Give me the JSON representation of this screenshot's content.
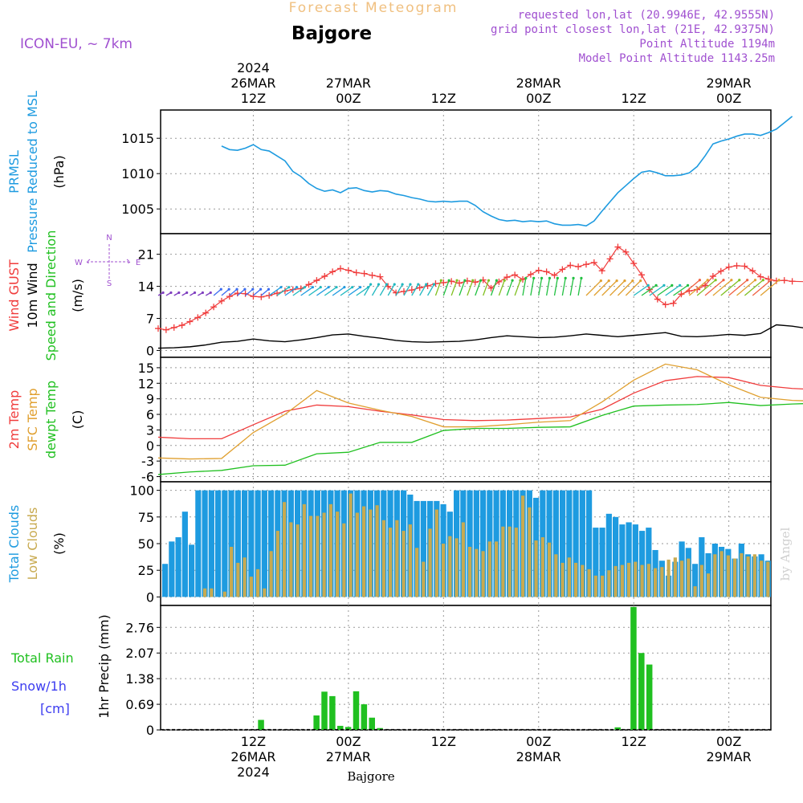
{
  "header": {
    "product": "Forecast Meteogram",
    "location": "Bajgore",
    "model": "ICON-EU, ~ 7km",
    "requested": "requested lon,lat (20.9946E, 42.9555N)",
    "grid_point": "grid point closest lon,lat (21E, 42.9375N)",
    "point_altitude": "Point Altitude 1194m",
    "model_altitude": "Model Point Altitude 1143.25m"
  },
  "footer": {
    "location": "Bajgore",
    "credit": "by Angel"
  },
  "colors": {
    "pressure": "#1e9be0",
    "gust": "#f03c3c",
    "wind": "#000000",
    "temp2m": "#f03c3c",
    "sfc": "#e0a030",
    "dewpt": "#20c020",
    "total_clouds": "#1e9be0",
    "low_clouds": "#c8aa50",
    "rain": "#20c020",
    "snow": "#3c3cf0",
    "cm_label": "#3c3cf0",
    "header_purple": "#a050d0",
    "header_title": "#f0c080"
  },
  "time_axis": {
    "hours_total": 64,
    "top_ticks": [
      {
        "hour": 12,
        "lines": [
          "2024",
          "26MAR",
          "12Z"
        ]
      },
      {
        "hour": 24,
        "lines": [
          "27MAR",
          "00Z"
        ]
      },
      {
        "hour": 36,
        "lines": [
          "12Z"
        ]
      },
      {
        "hour": 48,
        "lines": [
          "28MAR",
          "00Z"
        ]
      },
      {
        "hour": 60,
        "lines": [
          "12Z"
        ]
      },
      {
        "hour": 72,
        "lines": [
          "29MAR",
          "00Z"
        ]
      }
    ],
    "bottom_ticks": [
      {
        "hour": 12,
        "lines": [
          "12Z",
          "26MAR",
          "2024"
        ]
      },
      {
        "hour": 24,
        "lines": [
          "00Z",
          "27MAR"
        ]
      },
      {
        "hour": 36,
        "lines": [
          "12Z"
        ]
      },
      {
        "hour": 48,
        "lines": [
          "00Z",
          "28MAR"
        ]
      },
      {
        "hour": 60,
        "lines": [
          "12Z"
        ]
      },
      {
        "hour": 72,
        "lines": [
          "00Z",
          "29MAR"
        ]
      }
    ]
  },
  "panels": {
    "pressure": {
      "labels": [
        {
          "text": "PRMSL",
          "color": "#1e9be0"
        },
        {
          "text": "Pressure Reduced to MSL",
          "color": "#1e9be0"
        }
      ],
      "unit": "(hPa)",
      "ticks": [
        1005,
        1010,
        1015
      ]
    },
    "wind": {
      "labels": [
        {
          "text": "Wind GUST",
          "color": "#f03c3c"
        },
        {
          "text": "10m Wind",
          "color": "#000000"
        },
        {
          "text": "Speed and Direction",
          "color": "#20c020"
        }
      ],
      "unit": "(m/s)",
      "ticks": [
        0,
        7,
        14,
        21
      ],
      "compass": {
        "n": "N",
        "s": "S",
        "w": "W",
        "e": "E"
      }
    },
    "temp": {
      "labels": [
        {
          "text": "2m Temp",
          "color": "#f03c3c"
        },
        {
          "text": "SFC Temp",
          "color": "#e0a030"
        },
        {
          "text": "dewpt Temp",
          "color": "#20c020"
        }
      ],
      "unit": "(C)",
      "ticks": [
        -6,
        -3,
        0,
        3,
        6,
        9,
        12,
        15
      ]
    },
    "clouds": {
      "labels": [
        {
          "text": "Total Clouds",
          "color": "#1e9be0"
        },
        {
          "text": "Low Clouds",
          "color": "#c8aa50"
        }
      ],
      "unit": "(%)",
      "ticks": [
        0,
        25,
        50,
        75,
        100
      ]
    },
    "precip": {
      "labels": [
        {
          "text": "Total  Rain",
          "color": "#20c020"
        },
        {
          "text": "Snow/1h",
          "color": "#3c3cf0"
        },
        {
          "text": "[cm]",
          "color": "#3c3cf0"
        }
      ],
      "unit": "1hr Precip (mm)",
      "ticks": [
        0,
        0.69,
        1.38,
        2.07,
        2.76
      ]
    }
  },
  "chart_data": [
    {
      "type": "line",
      "title": "PRMSL Pressure Reduced to MSL",
      "ylabel": "(hPa)",
      "x_unit": "forecast hour (0 = 26MAR 00Z)",
      "ylim": [
        1001.5,
        1019
      ],
      "series": [
        {
          "name": "PRMSL",
          "x": [
            8,
            9,
            10,
            11,
            12,
            13,
            14,
            15,
            16,
            17,
            18,
            19,
            20,
            21,
            22,
            23,
            24,
            25,
            26,
            27,
            28,
            29,
            30,
            31,
            32,
            33,
            34,
            35,
            36,
            37,
            38,
            39,
            40,
            41,
            42,
            43,
            44,
            45,
            46,
            47,
            48,
            49,
            50,
            51,
            52,
            53,
            54,
            55,
            56,
            57,
            58,
            59,
            60,
            61,
            62,
            63,
            64,
            65,
            66,
            67,
            68,
            69,
            70,
            71,
            72,
            73,
            74,
            75,
            76
          ],
          "values": [
            1013.9,
            1013.4,
            1013.3,
            1013.6,
            1014.1,
            1013.4,
            1013.2,
            1012.5,
            1011.8,
            1010.3,
            1009.6,
            1008.6,
            1007.9,
            1007.5,
            1007.7,
            1007.3,
            1007.9,
            1008.0,
            1007.6,
            1007.4,
            1007.6,
            1007.5,
            1007.1,
            1006.9,
            1006.6,
            1006.4,
            1006.1,
            1006.0,
            1006.1,
            1006.0,
            1006.1,
            1006.1,
            1005.5,
            1004.6,
            1004.0,
            1003.5,
            1003.3,
            1003.4,
            1003.2,
            1003.3,
            1003.2,
            1003.3,
            1002.9,
            1002.7,
            1002.7,
            1002.8,
            1002.6,
            1003.3,
            1004.7,
            1006.0,
            1007.3,
            1008.3,
            1009.3,
            1010.2,
            1010.4,
            1010.1,
            1009.7,
            1009.7,
            1009.8,
            1010.1,
            1011.0,
            1012.5,
            1014.2,
            1014.6,
            1014.9,
            1015.3,
            1015.6,
            1015.6,
            1015.4
          ],
          "x_tail": [
            77,
            78,
            79,
            80
          ],
          "values_tail": [
            1015.8,
            1016.3,
            1017.2,
            1018.1
          ]
        }
      ]
    },
    {
      "type": "line",
      "title": "Wind GUST / 10m Wind Speed and Direction",
      "ylabel": "(m/s)",
      "ylim": [
        -1.5,
        25.5
      ],
      "series": [
        {
          "name": "Wind GUST",
          "x": [
            0,
            1,
            2,
            3,
            4,
            5,
            6,
            7,
            8,
            9,
            10,
            11,
            12,
            13,
            14,
            15,
            16,
            17,
            18,
            19,
            20,
            21,
            22,
            23,
            24,
            25,
            26,
            27,
            28,
            29,
            30,
            31,
            32,
            33,
            34,
            35,
            36,
            37,
            38,
            39,
            40,
            41,
            42,
            43,
            44,
            45,
            46,
            47,
            48,
            49,
            50,
            51,
            52,
            53,
            54,
            55,
            56,
            57,
            58,
            59,
            60,
            61,
            62,
            63,
            64,
            65,
            66,
            67,
            68,
            69,
            70,
            71,
            72,
            73,
            74,
            75,
            76,
            77,
            78,
            79,
            80
          ],
          "values": [
            4.8,
            4.5,
            5.0,
            5.5,
            6.3,
            7.2,
            8.2,
            9.5,
            10.8,
            11.8,
            12.5,
            12.4,
            11.8,
            11.7,
            12.0,
            12.5,
            13.0,
            13.3,
            13.5,
            14.4,
            15.3,
            16.2,
            17.2,
            17.9,
            17.5,
            17.0,
            16.8,
            16.4,
            16.1,
            14.0,
            12.6,
            12.9,
            13.2,
            13.7,
            14.1,
            14.6,
            14.8,
            15.1,
            14.7,
            15.2,
            14.9,
            15.4,
            13.6,
            15.0,
            16.0,
            16.5,
            15.5,
            16.6,
            17.5,
            17.2,
            16.4,
            17.7,
            18.6,
            18.3,
            18.8,
            19.2,
            17.4,
            20.0,
            22.6,
            21.5,
            19.0,
            16.5,
            13.3,
            11.2,
            10.0,
            10.3,
            12.3,
            13.0,
            13.3,
            14.2,
            16.2,
            17.3,
            18.2,
            18.5,
            18.4,
            17.4,
            16.1,
            15.6,
            15.2,
            15.3,
            15.1
          ],
          "x_tail": [
            82,
            84,
            86,
            88,
            90
          ],
          "values_tail": [
            15.0,
            14.6,
            16.1,
            14.4,
            13.2
          ]
        },
        {
          "name": "10m Wind",
          "x": [
            0,
            2,
            4,
            6,
            8,
            10,
            12,
            14,
            16,
            18,
            20,
            22,
            24,
            26,
            28,
            30,
            32,
            34,
            36,
            38,
            40,
            42,
            44,
            46,
            48,
            50,
            52,
            54,
            56,
            58,
            60,
            62,
            64,
            66,
            68,
            70,
            72,
            74,
            76,
            78,
            80,
            82,
            84,
            86,
            88,
            90
          ],
          "values": [
            0.5,
            0.6,
            0.8,
            1.2,
            1.8,
            2.0,
            2.5,
            2.1,
            1.9,
            2.3,
            2.8,
            3.4,
            3.6,
            3.1,
            2.7,
            2.2,
            1.9,
            1.8,
            1.9,
            2.0,
            2.3,
            2.8,
            3.2,
            3.0,
            2.8,
            2.9,
            3.2,
            3.6,
            3.3,
            3.0,
            3.3,
            3.6,
            3.9,
            3.1,
            3.0,
            3.2,
            3.5,
            3.3,
            3.7,
            5.6,
            5.3,
            4.8,
            3.5,
            3.0,
            3.2,
            2.2
          ]
        }
      ]
    },
    {
      "type": "line",
      "title": "2m Temp / SFC Temp / dewpt Temp",
      "ylabel": "(C)",
      "ylim": [
        -7,
        17
      ],
      "series": [
        {
          "name": "2m Temp",
          "x": [
            0,
            4,
            8,
            12,
            16,
            20,
            24,
            28,
            32,
            36,
            40,
            44,
            48,
            52,
            56,
            60,
            64,
            68,
            72,
            76,
            80,
            84,
            88,
            92
          ],
          "values": [
            1.6,
            1.3,
            1.3,
            4.0,
            6.6,
            7.8,
            7.5,
            6.6,
            5.9,
            5.0,
            4.8,
            4.9,
            5.2,
            5.5,
            7.0,
            10.1,
            12.5,
            13.3,
            13.1,
            11.6,
            11.0,
            10.7,
            10.3,
            9.4
          ]
        },
        {
          "name": "SFC Temp",
          "x": [
            0,
            4,
            8,
            12,
            16,
            20,
            24,
            28,
            32,
            36,
            40,
            44,
            48,
            52,
            56,
            60,
            64,
            68,
            72,
            76,
            80,
            84,
            88,
            92
          ],
          "values": [
            -2.4,
            -2.6,
            -2.5,
            2.5,
            6.0,
            10.6,
            8.2,
            6.8,
            5.6,
            3.6,
            3.6,
            4.0,
            4.5,
            4.8,
            8.4,
            12.6,
            15.7,
            14.6,
            11.7,
            9.3,
            8.7,
            8.5,
            8.4,
            7.7
          ]
        },
        {
          "name": "dewpt Temp",
          "x": [
            0,
            4,
            8,
            12,
            16,
            20,
            24,
            28,
            32,
            36,
            40,
            44,
            48,
            52,
            56,
            60,
            64,
            68,
            72,
            76,
            80,
            84,
            88,
            92
          ],
          "values": [
            -5.6,
            -5.1,
            -4.8,
            -3.9,
            -3.8,
            -1.6,
            -1.3,
            0.6,
            0.6,
            2.9,
            3.3,
            3.3,
            3.5,
            3.6,
            5.8,
            7.6,
            7.8,
            7.9,
            8.3,
            7.7,
            8.0,
            8.2,
            8.5,
            8.0
          ]
        }
      ]
    },
    {
      "type": "bar",
      "title": "Total Clouds / Low Clouds",
      "ylabel": "(%)",
      "ylim": [
        -8,
        108
      ],
      "x_start_hour": 0,
      "series": [
        {
          "name": "Total Clouds",
          "values": [
            31,
            52,
            56,
            80,
            49,
            100,
            100,
            100,
            100,
            100,
            100,
            100,
            100,
            100,
            100,
            100,
            100,
            100,
            100,
            100,
            100,
            100,
            100,
            100,
            100,
            100,
            100,
            100,
            100,
            100,
            100,
            100,
            100,
            100,
            100,
            100,
            100,
            96,
            90,
            90,
            90,
            90,
            87,
            80,
            100,
            100,
            100,
            100,
            100,
            100,
            100,
            100,
            100,
            100,
            100,
            100,
            93,
            100,
            100,
            100,
            100,
            100,
            100,
            100,
            100,
            65,
            65,
            78,
            75,
            68,
            70,
            68,
            62,
            65,
            44,
            34,
            20,
            33,
            52,
            46,
            31,
            56,
            41,
            50,
            47,
            45,
            36,
            50,
            40,
            38,
            40,
            34
          ]
        },
        {
          "name": "Low Clouds",
          "values": [
            0,
            0,
            0,
            0,
            0,
            0,
            8,
            8,
            0,
            5,
            47,
            32,
            37,
            19,
            26,
            8,
            43,
            62,
            89,
            70,
            68,
            87,
            76,
            76,
            79,
            87,
            80,
            69,
            97,
            79,
            85,
            82,
            86,
            72,
            65,
            72,
            62,
            68,
            46,
            33,
            64,
            82,
            50,
            57,
            55,
            70,
            47,
            45,
            43,
            52,
            52,
            66,
            66,
            65,
            95,
            84,
            53,
            56,
            51,
            40,
            32,
            37,
            32,
            30,
            26,
            20,
            20,
            25,
            29,
            30,
            32,
            33,
            30,
            31,
            27,
            28,
            35,
            37,
            34,
            36,
            10,
            30,
            22,
            40,
            43,
            39,
            36,
            41,
            38,
            40,
            34,
            33
          ]
        }
      ]
    },
    {
      "type": "bar",
      "title": "1hr Precip",
      "ylabel": "1hr Precip (mm)",
      "ylim": [
        0,
        3.35
      ],
      "series": [
        {
          "name": "Total Rain",
          "x": [
            13,
            20,
            21,
            22,
            23,
            24,
            25,
            26,
            27,
            28,
            58,
            59,
            60,
            61,
            62
          ],
          "values": [
            0.27,
            0.39,
            1.03,
            0.91,
            0.11,
            0.08,
            1.04,
            0.69,
            0.33,
            0.05,
            0.07,
            0,
            3.31,
            2.07,
            1.76
          ]
        }
      ]
    }
  ]
}
